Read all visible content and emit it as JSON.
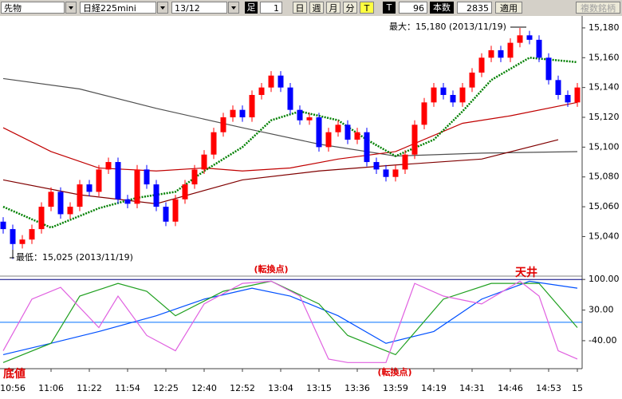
{
  "toolbar": {
    "market": "先物",
    "symbol": "日経225mini",
    "contract": "13/12",
    "bar_label": "足",
    "bar_size": "1",
    "day": "日",
    "week": "週",
    "month": "月",
    "minute": "分",
    "tick": "T",
    "tick_label": "T",
    "tick_count": "96",
    "count_label": "本数",
    "count": "2835",
    "apply": "適用",
    "multi": "複数銘柄"
  },
  "chart_data": [
    {
      "type": "candlestick",
      "categories": [
        null,
        "10:56",
        null,
        null,
        null,
        "11:06",
        null,
        null,
        null,
        "11:22",
        null,
        null,
        null,
        "11:54",
        null,
        null,
        null,
        "12:25",
        null,
        null,
        null,
        "12:40",
        null,
        null,
        null,
        "12:52",
        null,
        null,
        null,
        "13:04",
        null,
        null,
        null,
        "13:15",
        null,
        null,
        null,
        "13:36",
        null,
        null,
        null,
        "13:59",
        null,
        null,
        null,
        "14:19",
        null,
        null,
        null,
        "14:31",
        null,
        null,
        null,
        "14:46",
        null,
        null,
        null,
        "14:53",
        null,
        null,
        "15"
      ],
      "open": [
        15050,
        15045,
        15035,
        15038,
        15045,
        15060,
        15070,
        15055,
        15060,
        15075,
        15070,
        15085,
        15090,
        15065,
        15062,
        15085,
        15075,
        15060,
        15050,
        15065,
        15075,
        15085,
        15095,
        15110,
        15120,
        15125,
        15120,
        15135,
        15140,
        15148,
        15140,
        15125,
        15118,
        15120,
        15100,
        15110,
        15115,
        15105,
        15110,
        15090,
        15085,
        15080,
        15085,
        15095,
        15115,
        15130,
        15140,
        15135,
        15130,
        15140,
        15150,
        15160,
        15165,
        15160,
        15170,
        15175,
        15172,
        15160,
        15145,
        15135,
        15130
      ],
      "high": [
        15053,
        15048,
        15041,
        15048,
        15063,
        15073,
        15073,
        15063,
        15078,
        15078,
        15088,
        15093,
        15093,
        15068,
        15088,
        15088,
        15078,
        15063,
        15068,
        15078,
        15088,
        15098,
        15113,
        15123,
        15128,
        15128,
        15138,
        15143,
        15151,
        15151,
        15143,
        15128,
        15123,
        15123,
        15113,
        15118,
        15118,
        15113,
        15113,
        15093,
        15088,
        15088,
        15098,
        15118,
        15133,
        15143,
        15143,
        15138,
        15143,
        15153,
        15163,
        15168,
        15168,
        15173,
        15180,
        15178,
        15175,
        15163,
        15148,
        15138,
        15143
      ],
      "low": [
        15042,
        15025,
        15032,
        15035,
        15042,
        15057,
        15052,
        15052,
        15057,
        15067,
        15067,
        15082,
        15062,
        15059,
        15059,
        15072,
        15057,
        15047,
        15047,
        15062,
        15072,
        15082,
        15092,
        15107,
        15117,
        15117,
        15117,
        15132,
        15137,
        15137,
        15122,
        15115,
        15115,
        15097,
        15097,
        15107,
        15102,
        15102,
        15087,
        15082,
        15077,
        15077,
        15082,
        15092,
        15112,
        15127,
        15132,
        15127,
        15127,
        15137,
        15147,
        15157,
        15157,
        15157,
        15167,
        15169,
        15157,
        15142,
        15132,
        15127,
        15127
      ],
      "close": [
        15045,
        15035,
        15038,
        15045,
        15060,
        15070,
        15055,
        15060,
        15075,
        15070,
        15085,
        15090,
        15065,
        15062,
        15085,
        15075,
        15060,
        15050,
        15065,
        15075,
        15085,
        15095,
        15110,
        15120,
        15125,
        15120,
        15135,
        15140,
        15148,
        15140,
        15125,
        15118,
        15120,
        15100,
        15110,
        15115,
        15105,
        15110,
        15090,
        15085,
        15080,
        15085,
        15095,
        15115,
        15130,
        15140,
        15135,
        15130,
        15140,
        15150,
        15160,
        15165,
        15160,
        15170,
        15175,
        15172,
        15160,
        15145,
        15135,
        15130,
        15140
      ],
      "up_color": "#ff0000",
      "down_color": "#0000ff",
      "series": [
        {
          "color": "#505050",
          "x": [
            0,
            8,
            16,
            25,
            33,
            41,
            50,
            60
          ],
          "values": [
            15146,
            15139,
            15126,
            15113,
            15102,
            15094,
            15096,
            15097
          ]
        },
        {
          "color": "#800000",
          "x": [
            0,
            8,
            16,
            25,
            33,
            41,
            50,
            58
          ],
          "values": [
            15078,
            15068,
            15062,
            15078,
            15084,
            15088,
            15092,
            15105
          ]
        },
        {
          "color": "#c00000",
          "x": [
            0,
            5,
            10,
            16,
            21,
            25,
            30,
            35,
            41,
            48,
            53,
            60
          ],
          "values": [
            15113,
            15097,
            15086,
            15084,
            15086,
            15084,
            15086,
            15092,
            15097,
            15116,
            15121,
            15130
          ]
        },
        {
          "color": "#008000",
          "dotted": true,
          "x": [
            0,
            5,
            10,
            14,
            18,
            21,
            25,
            28,
            31,
            35,
            38,
            41,
            45,
            48,
            51,
            55,
            60
          ],
          "values": [
            15060,
            15046,
            15059,
            15066,
            15070,
            15084,
            15100,
            15118,
            15124,
            15118,
            15105,
            15094,
            15105,
            15124,
            15145,
            15160,
            15157
          ]
        }
      ],
      "ylim": [
        15014,
        15188
      ],
      "yticks": [
        {
          "value": 15180,
          "label": "15,180"
        },
        {
          "value": 15160,
          "label": "15,160"
        },
        {
          "value": 15140,
          "label": "15,140"
        },
        {
          "value": 15120,
          "label": "15,120"
        },
        {
          "value": 15100,
          "label": "15,100"
        },
        {
          "value": 15080,
          "label": "15,080"
        },
        {
          "value": 15060,
          "label": "15,060"
        },
        {
          "value": 15040,
          "label": "15,040"
        }
      ],
      "annotations": [
        "最大：15,180 (2013/11/19)",
        "最低：15,025 (2013/11/19)",
        "(転換点)"
      ]
    },
    {
      "type": "line",
      "series": [
        {
          "color": "#0050ff",
          "x": [
            0,
            5,
            10,
            16,
            21,
            26,
            30,
            35,
            40,
            45,
            50,
            55,
            60
          ],
          "values": [
            -72,
            -46,
            -19,
            17,
            55,
            80,
            62,
            17,
            -46,
            -19,
            55,
            96,
            80
          ]
        },
        {
          "color": "#20a020",
          "x": [
            0,
            5,
            8,
            12,
            15,
            18,
            23,
            28,
            33,
            36,
            41,
            46,
            51,
            56,
            60
          ],
          "values": [
            -90,
            -46,
            62,
            91,
            73,
            17,
            73,
            96,
            44,
            -28,
            -72,
            55,
            91,
            91,
            -10
          ]
        },
        {
          "color": "#e060e0",
          "x": [
            0,
            3,
            6,
            10,
            12,
            15,
            18,
            21,
            25,
            28,
            31,
            34,
            36,
            40,
            43,
            46,
            50,
            54,
            56,
            58,
            60
          ],
          "values": [
            -63,
            55,
            82,
            -10,
            62,
            -28,
            -63,
            44,
            91,
            96,
            62,
            -82,
            -90,
            -90,
            91,
            62,
            44,
            96,
            62,
            -63,
            -82
          ]
        }
      ],
      "reference_lines": [
        {
          "value": 100,
          "color": "#000080"
        },
        {
          "value": 2,
          "color": "#0070ff"
        }
      ],
      "ylim": [
        -104,
        104
      ],
      "yticks": [
        {
          "value": 100,
          "label": "100.00"
        },
        {
          "value": 30,
          "label": "30.00"
        },
        {
          "value": -40,
          "label": "-40.00"
        }
      ],
      "annotations": [
        "天井",
        "(転換点)",
        "底値"
      ]
    }
  ]
}
